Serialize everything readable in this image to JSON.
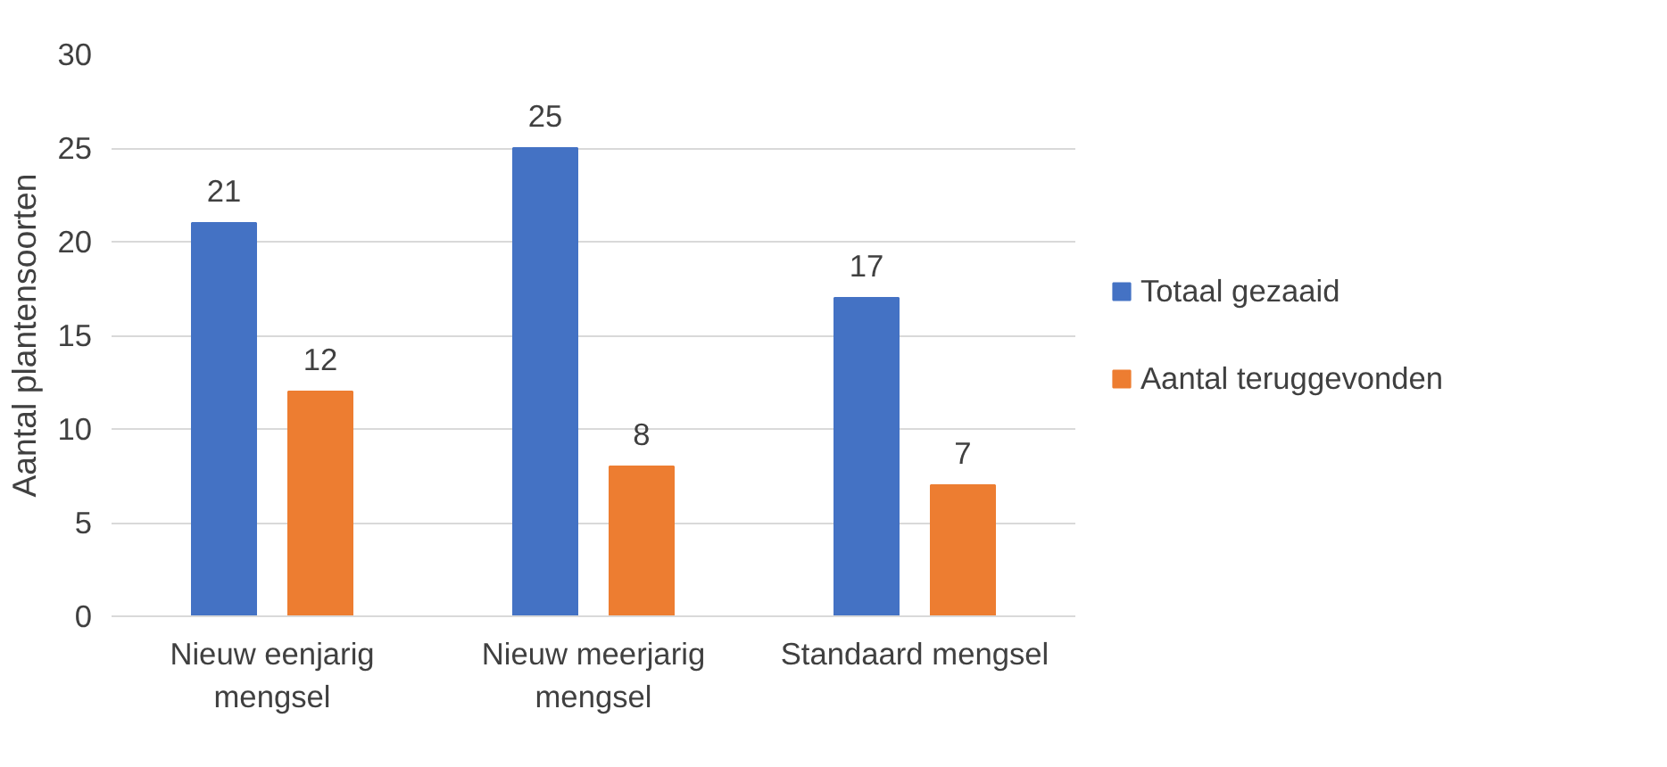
{
  "chart_data": {
    "type": "bar",
    "ylabel": "Aantal plantensoorten",
    "categories": [
      "Nieuw eenjarig mengsel",
      "Nieuw meerjarig mengsel",
      "Standaard mengsel"
    ],
    "series": [
      {
        "name": "Totaal gezaaid",
        "color": "#4472c4",
        "values": [
          21,
          25,
          17
        ]
      },
      {
        "name": "Aantal teruggevonden",
        "color": "#ed7d31",
        "values": [
          12,
          8,
          7
        ]
      }
    ],
    "ylim": [
      0,
      30
    ],
    "yticks": [
      0,
      5,
      10,
      15,
      20,
      25,
      30
    ],
    "grid": "y",
    "legend": "right",
    "data_labels": true
  }
}
